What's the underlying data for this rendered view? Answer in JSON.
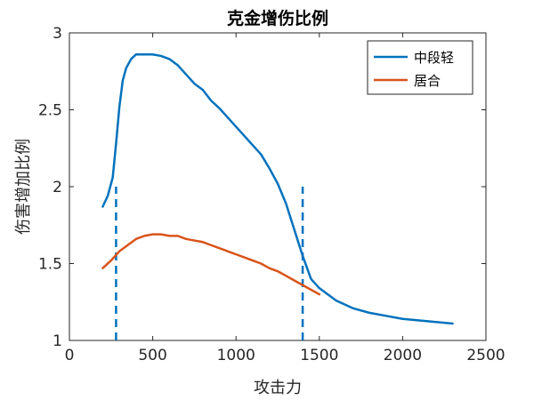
{
  "chart_data": {
    "type": "line",
    "title": "克金增伤比例",
    "xlabel": "攻击力",
    "ylabel": "伤害增加比例",
    "xlim": [
      0,
      2500
    ],
    "ylim": [
      1,
      3
    ],
    "xticks": [
      0,
      500,
      1000,
      1500,
      2000,
      2500
    ],
    "yticks": [
      1,
      1.5,
      2,
      2.5,
      3
    ],
    "xtick_labels": [
      "0",
      "500",
      "1000",
      "1500",
      "2000",
      "2500"
    ],
    "ytick_labels": [
      "1",
      "1.5",
      "2",
      "2.5",
      "3"
    ],
    "grid": false,
    "legend_position": "top-right",
    "series": [
      {
        "name": "中段轻",
        "color": "#0072BD",
        "x": [
          200,
          230,
          260,
          280,
          300,
          320,
          340,
          370,
          400,
          450,
          500,
          550,
          600,
          650,
          700,
          750,
          800,
          850,
          900,
          950,
          1000,
          1050,
          1100,
          1150,
          1200,
          1250,
          1300,
          1350,
          1400,
          1450,
          1500,
          1600,
          1700,
          1800,
          1900,
          2000,
          2100,
          2200,
          2300
        ],
        "y": [
          1.87,
          1.94,
          2.06,
          2.28,
          2.52,
          2.69,
          2.77,
          2.83,
          2.86,
          2.86,
          2.86,
          2.85,
          2.83,
          2.79,
          2.73,
          2.67,
          2.63,
          2.56,
          2.51,
          2.45,
          2.39,
          2.33,
          2.27,
          2.21,
          2.12,
          2.02,
          1.89,
          1.72,
          1.55,
          1.4,
          1.34,
          1.26,
          1.21,
          1.18,
          1.16,
          1.14,
          1.13,
          1.12,
          1.11
        ]
      },
      {
        "name": "居合",
        "color": "#D95319",
        "x": [
          200,
          250,
          300,
          350,
          400,
          450,
          500,
          550,
          600,
          650,
          700,
          750,
          800,
          850,
          900,
          950,
          1000,
          1050,
          1100,
          1150,
          1200,
          1250,
          1300,
          1350,
          1400,
          1450,
          1500
        ],
        "y": [
          1.47,
          1.52,
          1.58,
          1.62,
          1.66,
          1.68,
          1.69,
          1.69,
          1.68,
          1.68,
          1.66,
          1.65,
          1.64,
          1.62,
          1.6,
          1.58,
          1.56,
          1.54,
          1.52,
          1.5,
          1.47,
          1.45,
          1.42,
          1.39,
          1.36,
          1.33,
          1.3
        ]
      }
    ],
    "vlines": [
      {
        "x": 280,
        "y_range": [
          1,
          2
        ],
        "color": "#0072BD",
        "style": "dashed"
      },
      {
        "x": 1400,
        "y_range": [
          1,
          2
        ],
        "color": "#0072BD",
        "style": "dashed"
      }
    ]
  }
}
